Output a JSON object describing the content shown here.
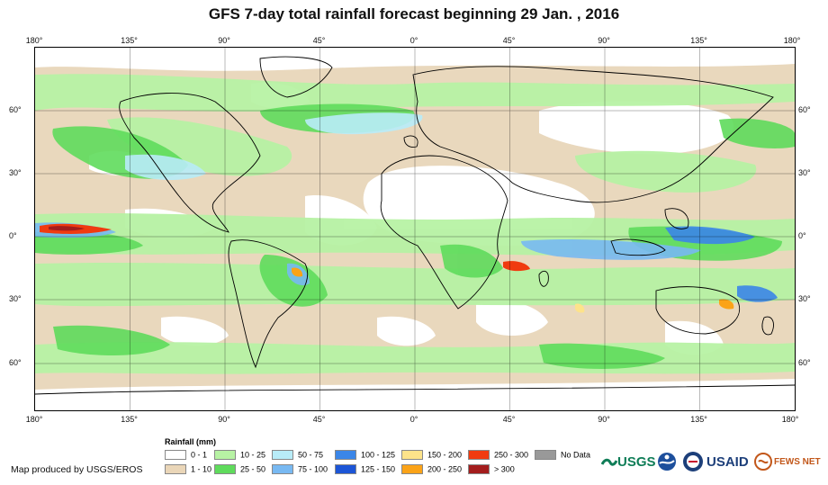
{
  "title": "GFS 7-day total rainfall forecast beginning 29 Jan. , 2016",
  "map": {
    "longitude_ticks": [
      "180°",
      "135°",
      "90°",
      "45°",
      "0°",
      "45°",
      "90°",
      "135°",
      "180°"
    ],
    "latitude_ticks": [
      "60°",
      "30°",
      "0°",
      "30°",
      "60°"
    ]
  },
  "legend": {
    "title": "Rainfall (mm)",
    "items": [
      {
        "label": "0 - 1",
        "color": "#ffffff"
      },
      {
        "label": "1 - 10",
        "color": "#ead6b8"
      },
      {
        "label": "10 - 25",
        "color": "#b7f2a4"
      },
      {
        "label": "25 - 50",
        "color": "#5fdb5c"
      },
      {
        "label": "50 - 75",
        "color": "#b8ecf8"
      },
      {
        "label": "75 - 100",
        "color": "#78b9f2"
      },
      {
        "label": "100 - 125",
        "color": "#3b86e8"
      },
      {
        "label": "125 - 150",
        "color": "#1c55d6"
      },
      {
        "label": "150 - 200",
        "color": "#fde38a"
      },
      {
        "label": "200 - 250",
        "color": "#fba318"
      },
      {
        "label": "250 - 300",
        "color": "#f03b10"
      },
      {
        "label": "> 300",
        "color": "#a31d1d"
      },
      {
        "label": "No Data",
        "color": "#999999"
      }
    ]
  },
  "credit": "Map produced by USGS/EROS",
  "logos": {
    "usgs": "USGS",
    "usaid": "USAID",
    "fews": "FEWS NET"
  }
}
